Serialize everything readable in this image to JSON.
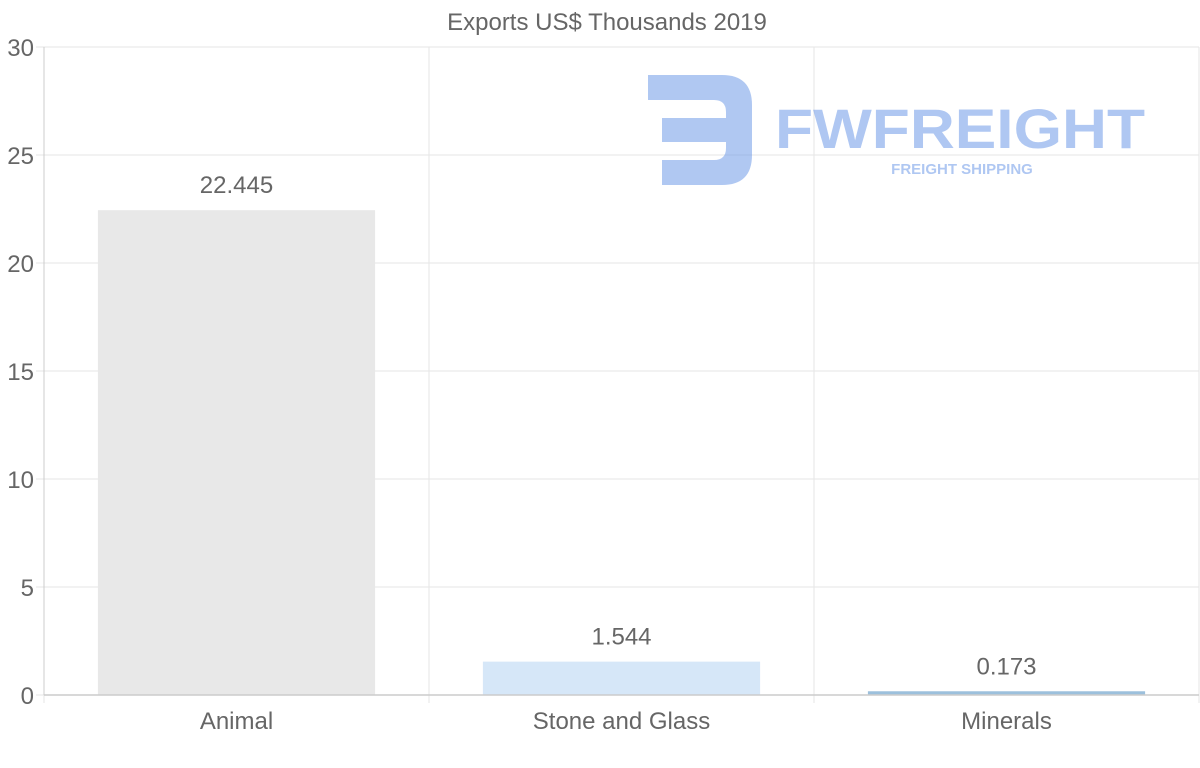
{
  "chart_data": {
    "type": "bar",
    "title": "Exports US$ Thousands 2019",
    "categories": [
      "Animal",
      "Stone and Glass",
      "Minerals"
    ],
    "values": [
      22.445,
      1.544,
      0.173
    ],
    "value_labels": [
      "22.445",
      "1.544",
      "0.173"
    ],
    "bar_colors": [
      "#e8e8e8",
      "#d6e7f8",
      "#9cc0dc"
    ],
    "ylim": [
      0,
      30
    ],
    "yticks": [
      0,
      5,
      10,
      15,
      20,
      25,
      30
    ],
    "xlabel": "",
    "ylabel": "",
    "grid": true
  },
  "watermark": {
    "brand": "FWFREIGHT",
    "tagline": "FREIGHT SHIPPING",
    "color": "#6f9ae8"
  },
  "colors": {
    "text": "#666666",
    "grid": "#e5e5e5",
    "axis": "#cccccc"
  }
}
